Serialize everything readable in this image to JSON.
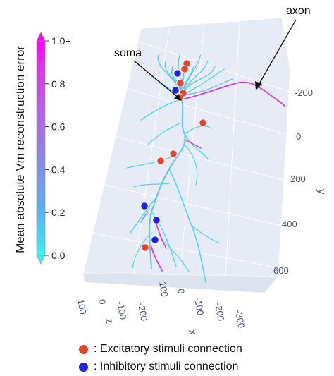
{
  "chart_data": {
    "type": "scatter3d",
    "colorbar": {
      "title": "Mean absolute Vm reconstruction error",
      "range": [
        0.0,
        1.0
      ],
      "ticks": [
        "0.0",
        "0.2",
        "0.4",
        "0.6",
        "0.8",
        "1.0+"
      ],
      "colors": [
        "#3ef0ef",
        "#5ab3ef",
        "#8a86e8",
        "#bb5ee3",
        "#e32fe6",
        "#ff00ff"
      ]
    },
    "axes": {
      "x": {
        "label": "x",
        "ticks": [
          "100",
          "0",
          "-100",
          "-200",
          "-300"
        ]
      },
      "y": {
        "label": "y",
        "ticks": [
          "-200",
          "0",
          "200",
          "400",
          "600"
        ]
      },
      "z": {
        "label": "z",
        "ticks": [
          "100",
          "0",
          "-100",
          "-200"
        ]
      }
    },
    "annotations": [
      {
        "text": "soma"
      },
      {
        "text": "axon"
      }
    ],
    "legend": [
      {
        "label": ": Excitatory stimuli connection",
        "color": "#e0462e"
      },
      {
        "label": ": Inhibitory stimuli connection",
        "color": "#2222dd"
      }
    ]
  }
}
